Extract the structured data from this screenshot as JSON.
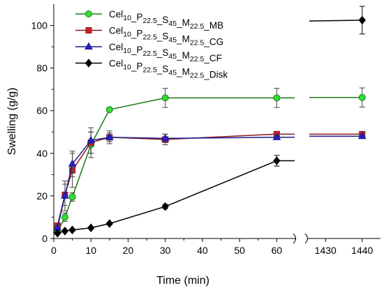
{
  "chart_data": {
    "type": "line",
    "xlabel": "Time (min)",
    "ylabel": "Swelling (g/g)",
    "ylim": [
      0,
      110
    ],
    "x_segments": [
      {
        "range": [
          0,
          65
        ],
        "ticks": [
          0,
          10,
          20,
          30,
          40,
          50,
          60
        ]
      },
      {
        "range": [
          1425,
          1445
        ],
        "ticks": [
          1430,
          1440
        ]
      }
    ],
    "yticks": [
      0,
      20,
      40,
      60,
      80,
      100
    ],
    "x_break_between": [
      65,
      1425
    ],
    "legend_position": "top-left",
    "legend_label_parts": [
      {
        "t": "Cel"
      },
      {
        "t": "10",
        "sub": true
      },
      {
        "t": "_P"
      },
      {
        "t": "22.5",
        "sub": true
      },
      {
        "t": "_S"
      },
      {
        "t": "45",
        "sub": true
      },
      {
        "t": "_M"
      },
      {
        "t": "22.5",
        "sub": true
      }
    ],
    "series": [
      {
        "name": "Cel10_P22.5_S45_M22.5_MB",
        "name_suffix": "_MB",
        "color": "#1a7a1a",
        "marker": "circle",
        "marker_fill": "#33dd33",
        "points": [
          {
            "x": 1,
            "y": 3,
            "err": 1
          },
          {
            "x": 3,
            "y": 10,
            "err": 2
          },
          {
            "x": 5,
            "y": 19.5,
            "err": 2
          },
          {
            "x": 10,
            "y": 44,
            "err": 6
          },
          {
            "x": 15,
            "y": 60.5,
            "err": 0
          },
          {
            "x": 30,
            "y": 66,
            "err": 4.5
          },
          {
            "x": 60,
            "y": 66,
            "err": 4.5
          },
          {
            "x": 1440,
            "y": 66.2,
            "err": 4.5
          }
        ]
      },
      {
        "name": "Cel10_P22.5_S45_M22.5_CG",
        "name_suffix": "_CG",
        "color": "#8b1a1a",
        "marker": "square",
        "marker_fill": "#cc2020",
        "points": [
          {
            "x": 1,
            "y": 6,
            "err": 1
          },
          {
            "x": 3,
            "y": 20.5,
            "err": 5
          },
          {
            "x": 5,
            "y": 32,
            "err": 8
          },
          {
            "x": 10,
            "y": 45,
            "err": 5
          },
          {
            "x": 15,
            "y": 47.5,
            "err": 3
          },
          {
            "x": 30,
            "y": 46.5,
            "err": 2.5
          },
          {
            "x": 60,
            "y": 49,
            "err": 1
          },
          {
            "x": 1440,
            "y": 49,
            "err": 1
          }
        ]
      },
      {
        "name": "Cel10_P22.5_S45_M22.5_CF",
        "name_suffix": "_CF",
        "color": "#1a1a8b",
        "marker": "triangle",
        "marker_fill": "#2020cc",
        "points": [
          {
            "x": 1,
            "y": 5,
            "err": 1
          },
          {
            "x": 3,
            "y": 20,
            "err": 7
          },
          {
            "x": 5,
            "y": 35,
            "err": 6
          },
          {
            "x": 10,
            "y": 46,
            "err": 6
          },
          {
            "x": 15,
            "y": 47.5,
            "err": 2
          },
          {
            "x": 30,
            "y": 47,
            "err": 2
          },
          {
            "x": 60,
            "y": 47.5,
            "err": 1
          },
          {
            "x": 1440,
            "y": 48,
            "err": 1
          }
        ]
      },
      {
        "name": "Cel10_P22.5_S45_M22.5_Disk",
        "name_suffix": "_Disk",
        "color": "#000000",
        "marker": "diamond",
        "marker_fill": "#000000",
        "points": [
          {
            "x": 1,
            "y": 2.5,
            "err": 0.5
          },
          {
            "x": 3,
            "y": 3.5,
            "err": 0.5
          },
          {
            "x": 5,
            "y": 4,
            "err": 0.5
          },
          {
            "x": 10,
            "y": 5,
            "err": 0.5
          },
          {
            "x": 15,
            "y": 7,
            "err": 0.5
          },
          {
            "x": 30,
            "y": 15,
            "err": 1
          },
          {
            "x": 60,
            "y": 36.5,
            "err": 2.5
          },
          {
            "x": 1440,
            "y": 102.5,
            "err": 6.5
          }
        ]
      }
    ]
  }
}
